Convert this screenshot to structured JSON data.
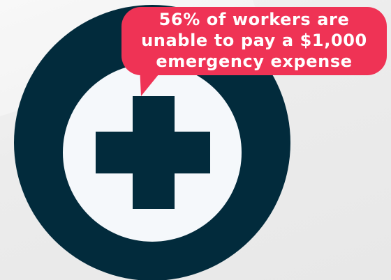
{
  "callout": {
    "lines": [
      "56% of workers are",
      "unable to pay a $1,000",
      "emergency expense"
    ]
  },
  "colors": {
    "ring": "#022b3c",
    "inner_circle": "#f5f8fb",
    "cross": "#022b3c",
    "bubble": "#ef3355",
    "bubble_text": "#ffffff",
    "background": "#ececec"
  },
  "icons": {
    "main": "medical-cross-icon"
  }
}
